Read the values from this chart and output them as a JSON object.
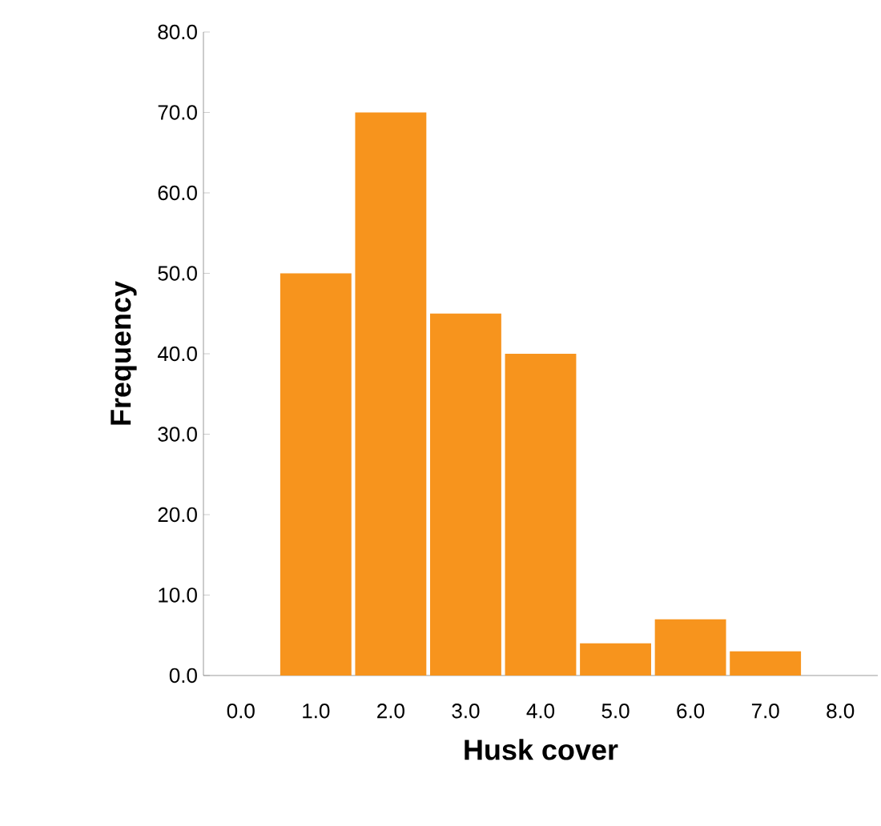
{
  "chart_data": {
    "type": "bar",
    "xlabel": "Husk cover",
    "ylabel": "Frequency",
    "categories": [
      "0.0",
      "1.0",
      "2.0",
      "3.0",
      "4.0",
      "5.0",
      "6.0",
      "7.0",
      "8.0"
    ],
    "values": [
      0,
      50,
      70,
      45,
      40,
      4,
      7,
      3,
      0
    ],
    "color": "#f7941d",
    "ylim": [
      0,
      80
    ],
    "yticks": [
      {
        "value": 0,
        "label": "0.0"
      },
      {
        "value": 10,
        "label": "10.0"
      },
      {
        "value": 20,
        "label": "20.0"
      },
      {
        "value": 30,
        "label": "30.0"
      },
      {
        "value": 40,
        "label": "40.0"
      },
      {
        "value": 50,
        "label": "50.0"
      },
      {
        "value": 60,
        "label": "60.0"
      },
      {
        "value": 70,
        "label": "70.0"
      },
      {
        "value": 80,
        "label": "80.0"
      }
    ]
  }
}
